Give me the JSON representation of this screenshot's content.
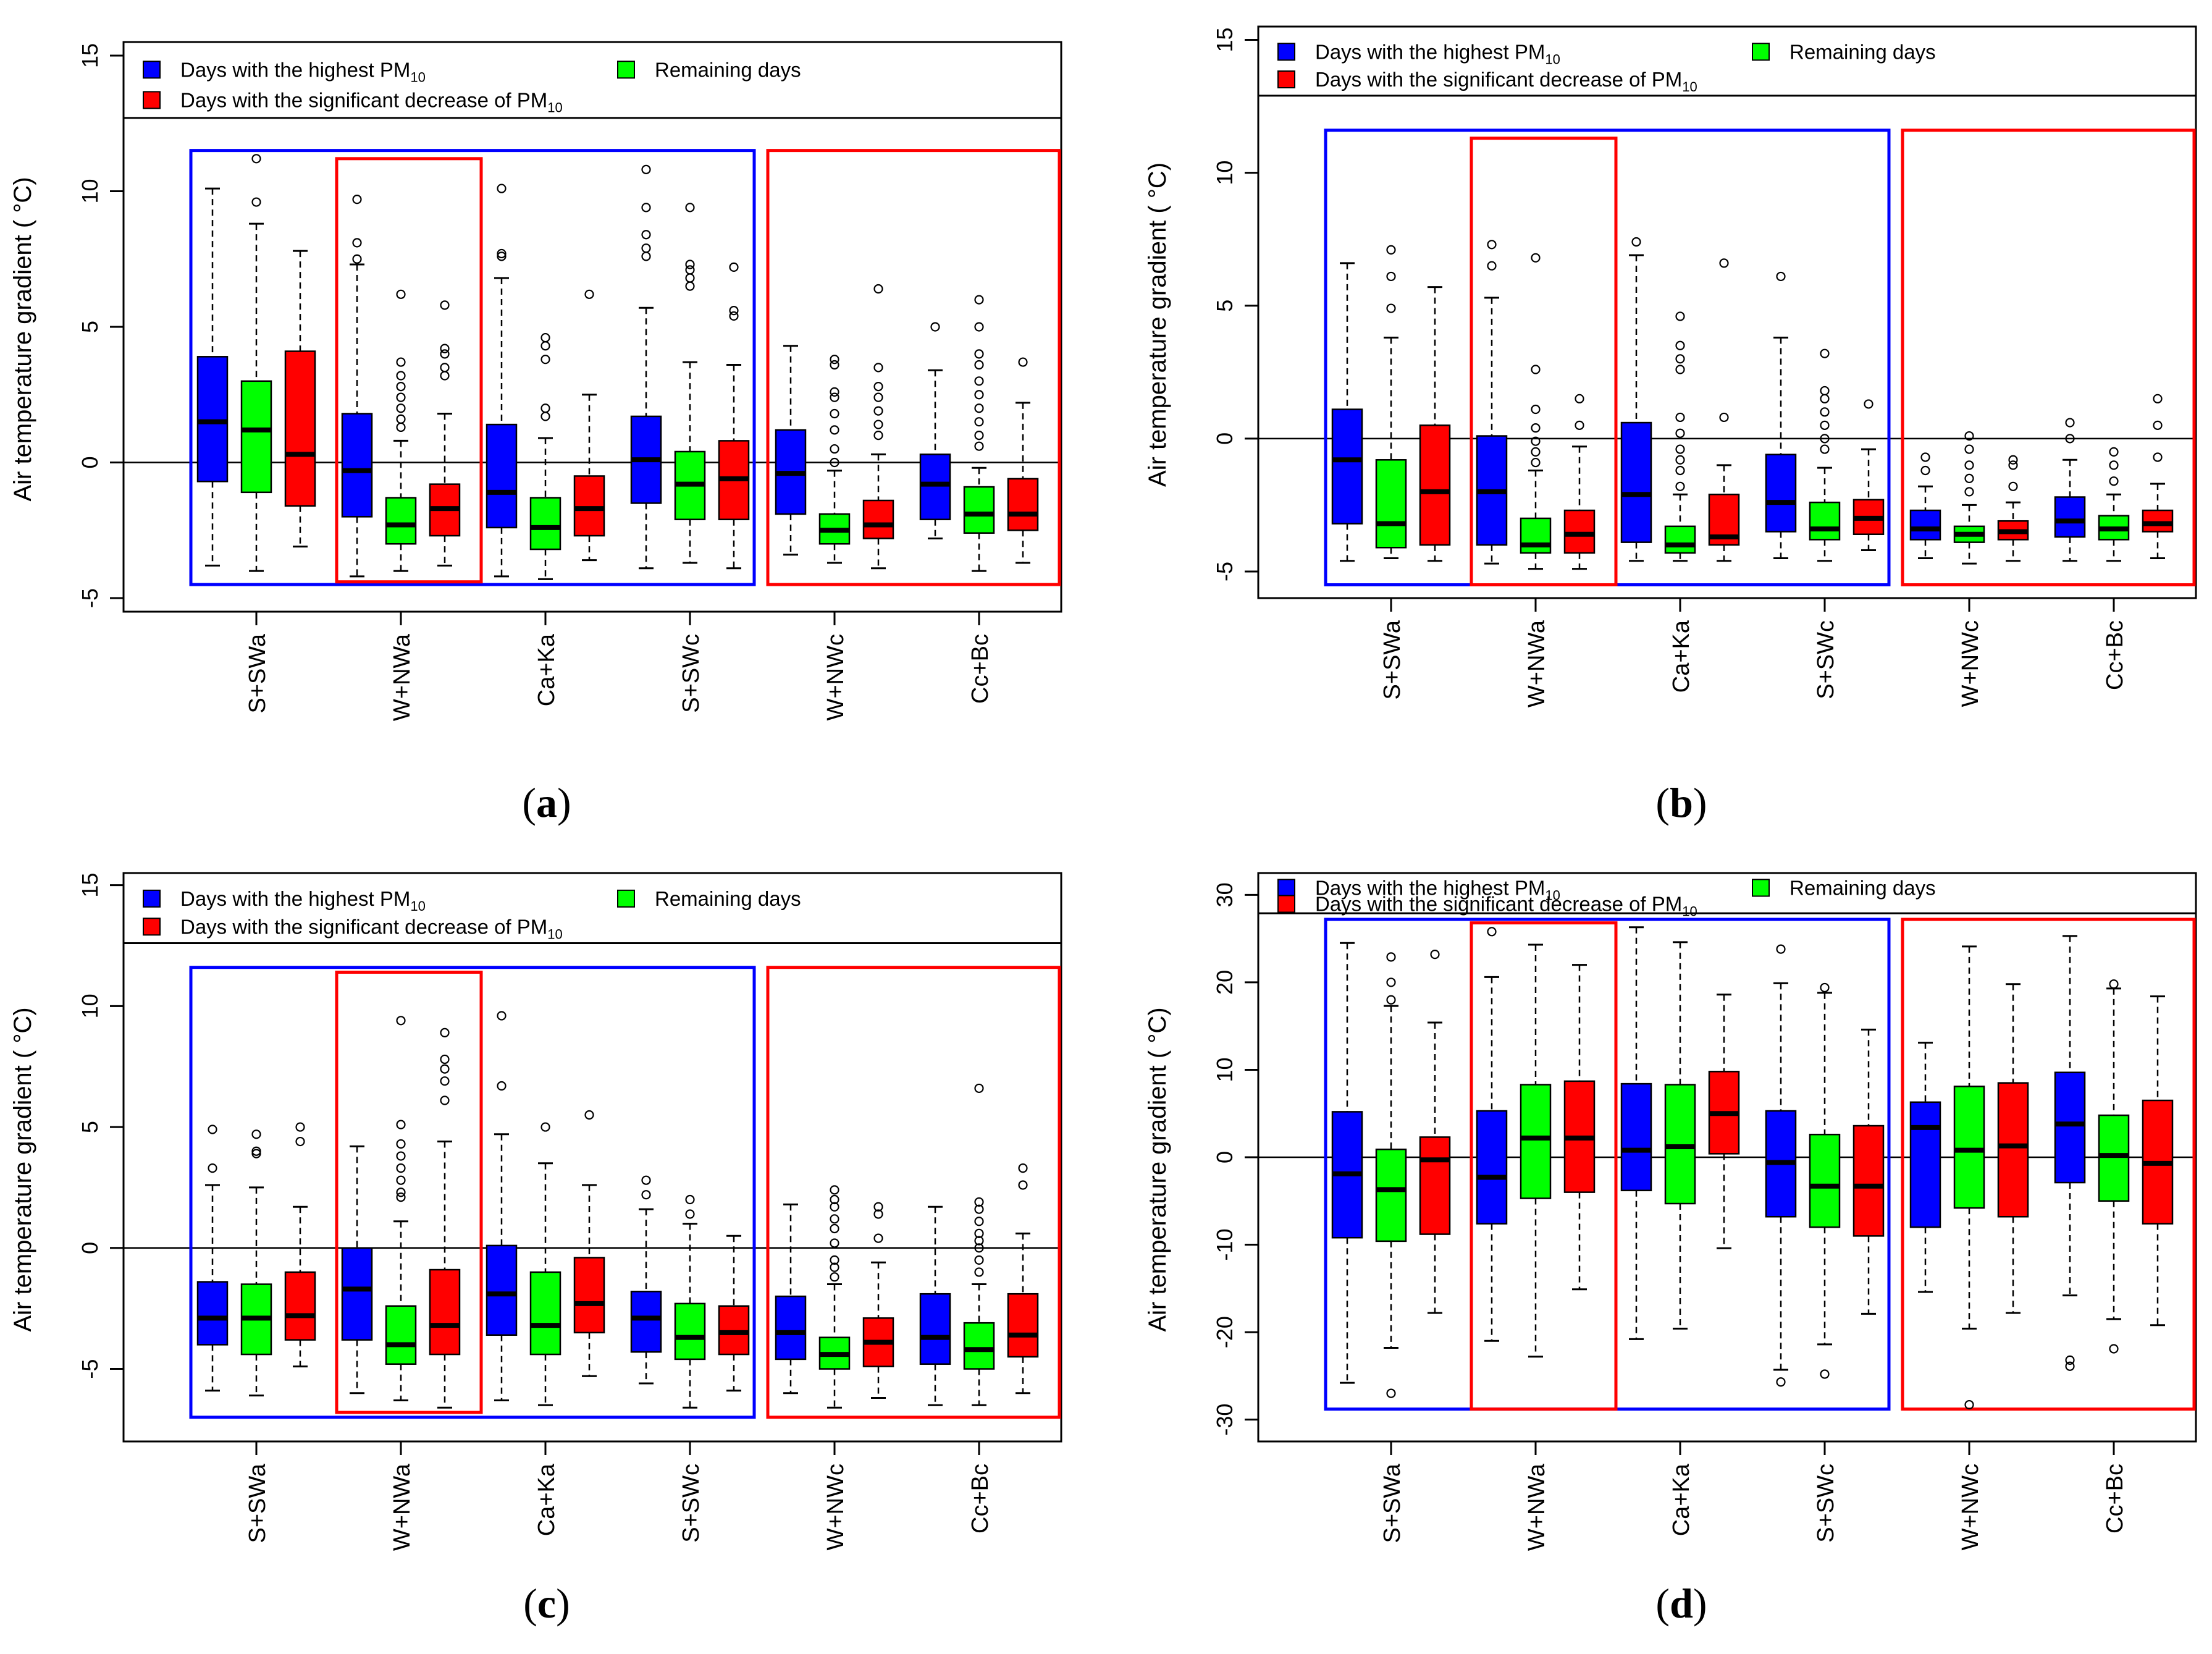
{
  "legend": {
    "highest": {
      "text": "Days with the highest PM",
      "sub": "10",
      "color": "#0000FF"
    },
    "remaining": {
      "text": "Remaining days",
      "color": "#00FF00"
    },
    "decrease": {
      "text": "Days with the significant decrease of PM",
      "sub": "10",
      "color": "#FF0000"
    }
  },
  "ylabel": "Air temperature gradient ( °C)",
  "categories": [
    "S+SWa",
    "W+NWa",
    "Ca+Ka",
    "S+SWc",
    "W+NWc",
    "Cc+Bc"
  ],
  "series_order": [
    "highest",
    "remaining",
    "decrease"
  ],
  "chart_data": [
    {
      "type": "box",
      "label": "(a)",
      "ylim": [
        -5.5,
        15.5
      ],
      "yticks": [
        -5,
        0,
        5,
        10,
        15
      ],
      "legend_top": 12.7,
      "blue_box": {
        "y": [
          -4.5,
          11.5
        ]
      },
      "red_box_mid": {
        "y": [
          -4.4,
          11.2
        ]
      },
      "red_box_right": {
        "y": [
          -4.5,
          11.5
        ]
      },
      "boxes": [
        [
          [
            -3.8,
            -0.7,
            1.5,
            3.9,
            10.1,
            []
          ],
          [
            -4.0,
            -1.1,
            1.2,
            3.0,
            8.8,
            [
              9.6,
              11.2
            ]
          ],
          [
            -3.1,
            -1.6,
            0.3,
            4.1,
            7.8,
            []
          ]
        ],
        [
          [
            -4.2,
            -2.0,
            -0.3,
            1.8,
            7.3,
            [
              7.5,
              8.1,
              9.7
            ]
          ],
          [
            -4.0,
            -3.0,
            -2.3,
            -1.3,
            0.8,
            [
              1.3,
              1.6,
              2.0,
              2.4,
              2.8,
              3.2,
              3.7,
              6.2
            ]
          ],
          [
            -3.8,
            -2.7,
            -1.7,
            -0.8,
            1.8,
            [
              3.2,
              3.5,
              4.0,
              4.2,
              5.8
            ]
          ]
        ],
        [
          [
            -4.2,
            -2.4,
            -1.1,
            1.4,
            6.8,
            [
              7.6,
              7.7,
              10.1
            ]
          ],
          [
            -4.3,
            -3.2,
            -2.4,
            -1.3,
            0.9,
            [
              1.7,
              2.0,
              3.8,
              4.3,
              4.6
            ]
          ],
          [
            -3.6,
            -2.7,
            -1.7,
            -0.5,
            2.5,
            [
              6.2
            ]
          ]
        ],
        [
          [
            -3.9,
            -1.5,
            0.1,
            1.7,
            5.7,
            [
              7.6,
              7.9,
              8.4,
              9.4,
              10.8
            ]
          ],
          [
            -3.7,
            -2.1,
            -0.8,
            0.4,
            3.7,
            [
              6.5,
              6.8,
              7.1,
              7.3,
              9.4
            ]
          ],
          [
            -3.9,
            -2.1,
            -0.6,
            0.8,
            3.6,
            [
              5.4,
              5.6,
              7.2
            ]
          ]
        ],
        [
          [
            -3.4,
            -1.9,
            -0.4,
            1.2,
            4.3,
            []
          ],
          [
            -3.7,
            -3.0,
            -2.5,
            -1.9,
            -0.3,
            [
              0.0,
              0.5,
              1.2,
              1.8,
              2.4,
              2.6,
              3.6,
              3.8
            ]
          ],
          [
            -3.9,
            -2.8,
            -2.3,
            -1.4,
            0.3,
            [
              1.0,
              1.4,
              1.9,
              2.4,
              2.8,
              3.5,
              6.4
            ]
          ]
        ],
        [
          [
            -2.8,
            -2.1,
            -0.8,
            0.3,
            3.4,
            [
              5.0
            ]
          ],
          [
            -4.0,
            -2.6,
            -1.9,
            -0.9,
            -0.2,
            [
              0.6,
              1.0,
              1.5,
              2.0,
              2.5,
              3.0,
              3.6,
              4.0,
              5.0,
              6.0
            ]
          ],
          [
            -3.7,
            -2.5,
            -1.9,
            -0.6,
            2.2,
            [
              3.7
            ]
          ]
        ]
      ]
    },
    {
      "type": "box",
      "label": "(b)",
      "ylim": [
        -6.0,
        15.5
      ],
      "yticks": [
        -5,
        0,
        5,
        10,
        15
      ],
      "legend_top": 12.9,
      "blue_box": {
        "y": [
          -5.5,
          11.6
        ]
      },
      "red_box_mid": {
        "y": [
          -5.5,
          11.3
        ]
      },
      "red_box_right": {
        "y": [
          -5.5,
          11.6
        ]
      },
      "boxes": [
        [
          [
            -4.6,
            -3.2,
            -0.8,
            1.1,
            6.6,
            []
          ],
          [
            -4.5,
            -4.1,
            -3.2,
            -0.8,
            3.8,
            [
              4.9,
              6.1,
              7.1
            ]
          ],
          [
            -4.6,
            -4.0,
            -2.0,
            0.5,
            5.7,
            []
          ]
        ],
        [
          [
            -4.7,
            -4.0,
            -2.0,
            0.1,
            5.3,
            [
              6.5,
              7.3
            ]
          ],
          [
            -4.9,
            -4.3,
            -4.0,
            -3.0,
            -1.2,
            [
              -0.9,
              -0.5,
              -0.1,
              0.4,
              1.1,
              2.6,
              6.8
            ]
          ],
          [
            -4.9,
            -4.3,
            -3.6,
            -2.7,
            -0.3,
            [
              0.5,
              1.5
            ]
          ]
        ],
        [
          [
            -4.6,
            -3.9,
            -2.1,
            0.6,
            6.9,
            [
              7.4
            ]
          ],
          [
            -4.6,
            -4.3,
            -4.0,
            -3.3,
            -2.1,
            [
              -1.8,
              -1.2,
              -0.8,
              -0.4,
              0.2,
              0.8,
              2.6,
              3.0,
              3.5,
              4.6
            ]
          ],
          [
            -4.6,
            -4.0,
            -3.7,
            -2.1,
            -1.0,
            [
              0.8,
              6.6
            ]
          ]
        ],
        [
          [
            -4.5,
            -3.5,
            -2.4,
            -0.6,
            3.8,
            [
              6.1
            ]
          ],
          [
            -4.6,
            -3.8,
            -3.4,
            -2.4,
            -1.1,
            [
              -0.4,
              0.0,
              0.5,
              1.0,
              1.5,
              1.8,
              3.2
            ]
          ],
          [
            -4.2,
            -3.6,
            -3.0,
            -2.3,
            -0.4,
            [
              1.3
            ]
          ]
        ],
        [
          [
            -4.5,
            -3.8,
            -3.4,
            -2.7,
            -1.8,
            [
              -1.2,
              -0.7
            ]
          ],
          [
            -4.7,
            -3.9,
            -3.6,
            -3.3,
            -2.5,
            [
              -2.0,
              -1.5,
              -1.0,
              -0.4,
              0.1
            ]
          ],
          [
            -4.6,
            -3.8,
            -3.5,
            -3.1,
            -2.4,
            [
              -1.8,
              -1.0,
              -0.8
            ]
          ]
        ],
        [
          [
            -4.6,
            -3.7,
            -3.1,
            -2.2,
            -0.8,
            [
              0.0,
              0.6
            ]
          ],
          [
            -4.6,
            -3.8,
            -3.4,
            -2.9,
            -2.1,
            [
              -1.6,
              -1.0,
              -0.5
            ]
          ],
          [
            -4.5,
            -3.5,
            -3.2,
            -2.7,
            -1.7,
            [
              -0.7,
              0.5,
              1.5
            ]
          ]
        ]
      ]
    },
    {
      "type": "box",
      "label": "(c)",
      "ylim": [
        -8.0,
        15.5
      ],
      "yticks": [
        -5,
        0,
        5,
        10,
        15
      ],
      "legend_top": 12.6,
      "blue_box": {
        "y": [
          -7.0,
          11.6
        ]
      },
      "red_box_mid": {
        "y": [
          -6.8,
          11.4
        ]
      },
      "red_box_right": {
        "y": [
          -7.0,
          11.6
        ]
      },
      "boxes": [
        [
          [
            -5.9,
            -4.0,
            -2.9,
            -1.4,
            2.6,
            [
              3.3,
              4.9
            ]
          ],
          [
            -6.1,
            -4.4,
            -2.9,
            -1.5,
            2.5,
            [
              3.9,
              4.0,
              4.7
            ]
          ],
          [
            -4.9,
            -3.8,
            -2.8,
            -1.0,
            1.7,
            [
              4.4,
              5.0
            ]
          ]
        ],
        [
          [
            -6.0,
            -3.8,
            -1.7,
            0.0,
            4.2,
            []
          ],
          [
            -6.3,
            -4.8,
            -4.0,
            -2.4,
            1.1,
            [
              2.1,
              2.3,
              2.8,
              3.3,
              3.8,
              4.3,
              5.1,
              9.4
            ]
          ],
          [
            -6.6,
            -4.4,
            -3.2,
            -0.9,
            4.4,
            [
              6.1,
              6.9,
              7.4,
              7.8,
              8.9
            ]
          ]
        ],
        [
          [
            -6.3,
            -3.6,
            -1.9,
            0.1,
            4.7,
            [
              6.7,
              9.6
            ]
          ],
          [
            -6.5,
            -4.4,
            -3.2,
            -1.0,
            3.5,
            [
              5.0
            ]
          ],
          [
            -5.3,
            -3.5,
            -2.3,
            -0.4,
            2.6,
            [
              5.5
            ]
          ]
        ],
        [
          [
            -5.6,
            -4.3,
            -2.9,
            -1.8,
            1.6,
            [
              2.2,
              2.8
            ]
          ],
          [
            -6.6,
            -4.6,
            -3.7,
            -2.3,
            1.0,
            [
              1.4,
              2.0
            ]
          ],
          [
            -5.9,
            -4.4,
            -3.5,
            -2.4,
            0.5,
            []
          ]
        ],
        [
          [
            -6.0,
            -4.6,
            -3.5,
            -2.0,
            1.8,
            []
          ],
          [
            -6.6,
            -5.0,
            -4.4,
            -3.7,
            -1.5,
            [
              -1.2,
              -0.8,
              -0.5,
              0.2,
              0.8,
              1.2,
              1.7,
              2.0,
              2.4
            ]
          ],
          [
            -6.2,
            -4.9,
            -3.9,
            -2.9,
            -0.6,
            [
              0.4,
              1.4,
              1.7
            ]
          ]
        ],
        [
          [
            -6.5,
            -4.8,
            -3.7,
            -1.9,
            1.7,
            []
          ],
          [
            -6.5,
            -5.0,
            -4.2,
            -3.1,
            -1.5,
            [
              -1.0,
              -0.5,
              0.0,
              0.3,
              0.6,
              1.1,
              1.6,
              1.9,
              6.6
            ]
          ],
          [
            -6.0,
            -4.5,
            -3.6,
            -1.9,
            0.6,
            [
              2.6,
              3.3
            ]
          ]
        ]
      ]
    },
    {
      "type": "box",
      "label": "(d)",
      "ylim": [
        -32.5,
        32.5
      ],
      "yticks": [
        -30,
        -20,
        -10,
        0,
        10,
        20,
        30
      ],
      "legend_top": 27.9,
      "blue_box": {
        "y": [
          -28.8,
          27.2
        ]
      },
      "red_box_mid": {
        "y": [
          -28.8,
          26.8
        ]
      },
      "red_box_right": {
        "y": [
          -28.8,
          27.2
        ]
      },
      "boxes": [
        [
          [
            -25.8,
            -9.2,
            -1.9,
            5.2,
            24.5,
            []
          ],
          [
            -21.8,
            -9.6,
            -3.7,
            0.9,
            17.3,
            [
              -27.0,
              18.0,
              20.0,
              22.9
            ]
          ],
          [
            -17.8,
            -8.8,
            -0.3,
            2.3,
            15.4,
            [
              23.2
            ]
          ]
        ],
        [
          [
            -21.0,
            -7.6,
            -2.3,
            5.3,
            20.6,
            [
              25.8
            ]
          ],
          [
            -22.8,
            -4.7,
            2.2,
            8.3,
            24.3,
            []
          ],
          [
            -15.1,
            -4.0,
            2.2,
            8.7,
            22.0,
            []
          ]
        ],
        [
          [
            -20.8,
            -3.8,
            0.8,
            8.4,
            26.3,
            []
          ],
          [
            -19.6,
            -5.3,
            1.2,
            8.3,
            24.6,
            []
          ],
          [
            -10.4,
            0.4,
            5.0,
            9.8,
            18.6,
            []
          ]
        ],
        [
          [
            -24.3,
            -6.8,
            -0.6,
            5.3,
            19.9,
            [
              -25.7,
              23.8
            ]
          ],
          [
            -21.4,
            -8.0,
            -3.3,
            2.6,
            18.8,
            [
              -24.8,
              19.4
            ]
          ],
          [
            -17.9,
            -9.0,
            -3.3,
            3.6,
            14.6,
            []
          ]
        ],
        [
          [
            -15.4,
            -8.0,
            3.4,
            6.3,
            13.1,
            []
          ],
          [
            -19.6,
            -5.8,
            0.8,
            8.1,
            24.1,
            [
              -28.3
            ]
          ],
          [
            -17.8,
            -6.8,
            1.3,
            8.5,
            19.8,
            []
          ]
        ],
        [
          [
            -15.8,
            -2.9,
            3.8,
            9.7,
            25.3,
            [
              -23.9,
              -23.2
            ]
          ],
          [
            -18.5,
            -5.0,
            0.2,
            4.8,
            19.3,
            [
              -21.9,
              19.8
            ]
          ],
          [
            -19.2,
            -7.6,
            -0.7,
            6.5,
            18.4,
            []
          ]
        ]
      ]
    }
  ]
}
